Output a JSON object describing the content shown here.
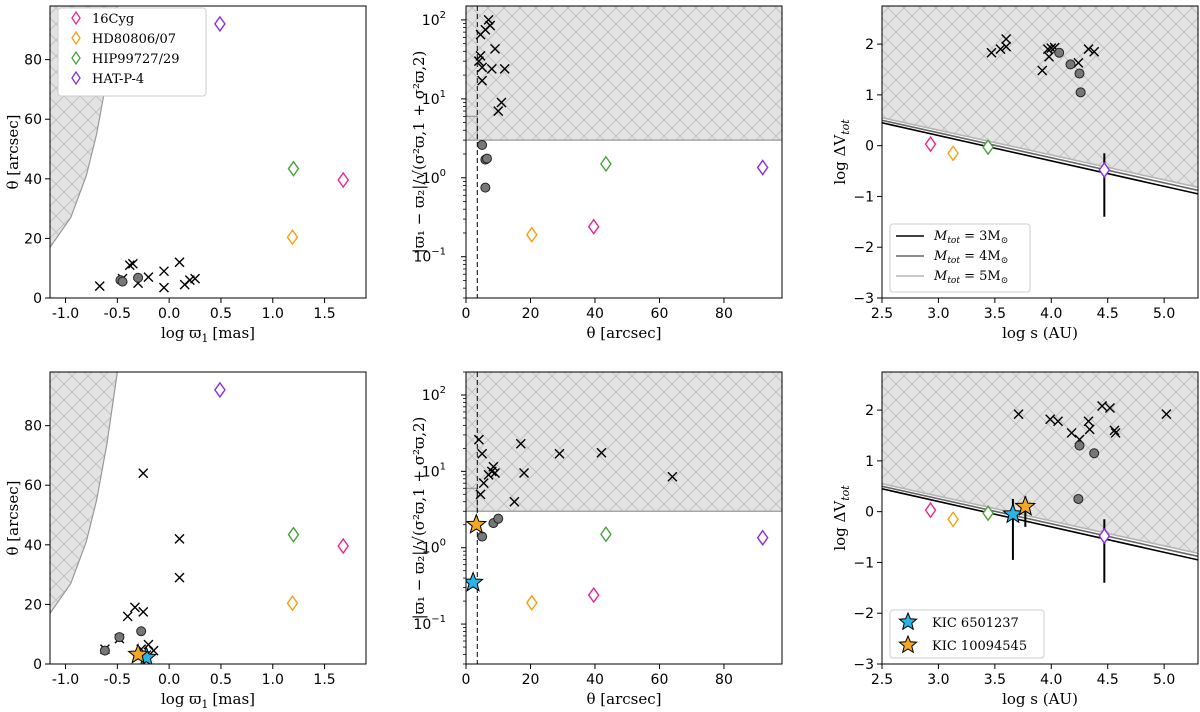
{
  "colors": {
    "16Cyg": "#e8268c",
    "HD80806/07": "#f5a10f",
    "HIP99727/29": "#4aa03a",
    "HAT-P-4": "#8a2be2",
    "star_blue": "#27b5e8",
    "star_orange": "#f5a623",
    "shade": "#e3e3e3",
    "hatch": "#bdbdbd"
  },
  "labels": {
    "x_plx": "log ϖ",
    "x_plx_sub": "1",
    "x_plx_unit": "[mas]",
    "y_theta": "θ [arcsec]",
    "x_theta": "θ [arcsec]",
    "y_plxsig": "|ϖ₁ − ϖ₂|/√(σ²ϖ,1 + σ²ϖ,2)",
    "x_s": "log s (AU)",
    "y_dv": "log ΔV",
    "y_dv_sub": "tot"
  },
  "legend_companions": [
    "16Cyg",
    "HD80806/07",
    "HIP99727/29",
    "HAT-P-4"
  ],
  "legend_mass": [
    "M",
    "tot",
    " = 3M",
    "⊙",
    " = 4M",
    " = 5M"
  ],
  "legend_mass_values": [
    3,
    4,
    5
  ],
  "legend_stars": [
    "KIC 6501237",
    "KIC 10094545"
  ],
  "chart_data": [
    {
      "id": "p1",
      "type": "scatter",
      "xlim": [
        -1.15,
        1.9
      ],
      "ylim": [
        0,
        98
      ],
      "xticks": [
        "-1.0",
        "-0.5",
        "0.0",
        "0.5",
        "1.0",
        "1.5"
      ],
      "xtick_values": [
        -1.0,
        -0.5,
        0.0,
        0.5,
        1.0,
        1.5
      ],
      "yticks": [
        "0",
        "20",
        "40",
        "60",
        "80"
      ],
      "ytick_values": [
        0,
        20,
        40,
        60,
        80
      ],
      "shade_curve": {
        "x": [
          -1.15,
          -0.95,
          -0.8,
          -0.7,
          -0.6,
          -0.55,
          -0.5
        ],
        "y": [
          17,
          27,
          41,
          55,
          74,
          86,
          98
        ]
      },
      "crosses": [
        [
          -0.67,
          4
        ],
        [
          -0.38,
          11
        ],
        [
          -0.35,
          11.5
        ],
        [
          -0.3,
          5
        ],
        [
          -0.2,
          7
        ],
        [
          -0.05,
          9
        ],
        [
          -0.05,
          3.5
        ],
        [
          0.1,
          12
        ],
        [
          0.2,
          6
        ],
        [
          0.15,
          4.5
        ],
        [
          0.25,
          6.5
        ],
        [
          -0.45,
          6.5
        ]
      ],
      "circles": [
        [
          -0.47,
          6
        ],
        [
          -0.45,
          5.5
        ],
        [
          -0.3,
          6.8
        ]
      ],
      "diamonds": [
        [
          1.68,
          39.6,
          "16Cyg"
        ],
        [
          1.19,
          20.4,
          "HD80806/07"
        ],
        [
          1.2,
          43.4,
          "HIP99727/29"
        ],
        [
          0.49,
          92,
          "HAT-P-4"
        ]
      ]
    },
    {
      "id": "p2",
      "type": "scatter",
      "log_y": true,
      "xlim": [
        0,
        98
      ],
      "ylim": [
        0.03,
        150
      ],
      "xticks": [
        "0",
        "20",
        "40",
        "60",
        "80"
      ],
      "xtick_values": [
        0,
        20,
        40,
        60,
        80
      ],
      "ytick_labels": [
        "10",
        "10",
        "10"
      ],
      "ytick_exps": [
        "−1",
        "0",
        "1"
      ],
      "ytick_extra": "10",
      "ytick_extra_exp": "2",
      "ytick_values": [
        0.1,
        1,
        10,
        100
      ],
      "shade_y": 3,
      "shade_step": [
        [
          0,
          6
        ],
        [
          3.5,
          6
        ]
      ],
      "vline_x": 3.5,
      "crosses": [
        [
          4,
          30
        ],
        [
          4.5,
          65
        ],
        [
          5,
          17
        ],
        [
          5,
          25
        ],
        [
          6,
          75
        ],
        [
          7,
          100
        ],
        [
          7.5,
          85
        ],
        [
          8,
          24
        ],
        [
          9,
          43
        ],
        [
          10,
          7
        ],
        [
          11,
          9
        ],
        [
          12,
          24
        ],
        [
          4.5,
          35
        ]
      ],
      "circles": [
        [
          5,
          2.6
        ],
        [
          6,
          1.7
        ],
        [
          6.5,
          1.75
        ],
        [
          6,
          0.75
        ]
      ],
      "diamonds": [
        [
          39.6,
          0.24,
          "16Cyg"
        ],
        [
          20.4,
          0.19,
          "HD80806/07"
        ],
        [
          43.4,
          1.5,
          "HIP99727/29"
        ],
        [
          92,
          1.35,
          "HAT-P-4"
        ]
      ]
    },
    {
      "id": "p3",
      "type": "scatter",
      "xlim": [
        2.5,
        5.3
      ],
      "ylim": [
        -3,
        2.75
      ],
      "xticks": [
        "2.5",
        "3.0",
        "3.5",
        "4.0",
        "4.5",
        "5.0"
      ],
      "xtick_values": [
        2.5,
        3.0,
        3.5,
        4.0,
        4.5,
        5.0
      ],
      "yticks": [
        "−3",
        "−2",
        "−1",
        "0",
        "1",
        "2"
      ],
      "ytick_values": [
        -3,
        -2,
        -1,
        0,
        1,
        2
      ],
      "lines": [
        {
          "m": 3,
          "y0": 0.45,
          "y1": -0.95
        },
        {
          "m": 4,
          "y0": 0.5,
          "y1": -0.88
        },
        {
          "m": 5,
          "y0": 0.55,
          "y1": -0.82
        }
      ],
      "crosses": [
        [
          3.47,
          1.83
        ],
        [
          3.55,
          1.9
        ],
        [
          3.6,
          2.1
        ],
        [
          3.6,
          1.95
        ],
        [
          3.92,
          1.48
        ],
        [
          3.98,
          1.75
        ],
        [
          4.0,
          1.92
        ],
        [
          4.03,
          1.93
        ],
        [
          4.24,
          1.63
        ],
        [
          4.33,
          1.9
        ],
        [
          4.38,
          1.85
        ],
        [
          3.97,
          1.9
        ]
      ],
      "circles": [
        [
          4.07,
          1.83
        ],
        [
          4.17,
          1.6
        ],
        [
          4.25,
          1.42
        ],
        [
          4.26,
          1.05
        ]
      ],
      "diamonds": [
        [
          2.93,
          0.03,
          "16Cyg"
        ],
        [
          3.13,
          -0.15,
          "HD80806/07"
        ],
        [
          3.44,
          -0.03,
          "HIP99727/29"
        ],
        [
          4.47,
          -0.48,
          "HAT-P-4"
        ]
      ],
      "errorbars": [
        [
          4.47,
          -1.4,
          -0.15
        ]
      ]
    },
    {
      "id": "p4",
      "type": "scatter",
      "xlim": [
        -1.15,
        1.9
      ],
      "ylim": [
        0,
        98
      ],
      "xticks": [
        "-1.0",
        "-0.5",
        "0.0",
        "0.5",
        "1.0",
        "1.5"
      ],
      "xtick_values": [
        -1.0,
        -0.5,
        0.0,
        0.5,
        1.0,
        1.5
      ],
      "yticks": [
        "0",
        "20",
        "40",
        "60",
        "80"
      ],
      "ytick_values": [
        0,
        20,
        40,
        60,
        80
      ],
      "shade_curve": {
        "x": [
          -1.15,
          -0.95,
          -0.8,
          -0.7,
          -0.6,
          -0.55,
          -0.5
        ],
        "y": [
          17,
          27,
          41,
          55,
          74,
          86,
          98
        ]
      },
      "crosses": [
        [
          -0.62,
          5
        ],
        [
          -0.48,
          8.5
        ],
        [
          -0.4,
          16
        ],
        [
          -0.33,
          19
        ],
        [
          -0.25,
          64
        ],
        [
          -0.25,
          17.5
        ],
        [
          -0.2,
          6.5
        ],
        [
          -0.22,
          3
        ],
        [
          -0.15,
          4.5
        ],
        [
          0.1,
          42
        ],
        [
          0.1,
          29
        ],
        [
          -0.27,
          5
        ]
      ],
      "circles": [
        [
          -0.62,
          4.5
        ],
        [
          -0.48,
          9
        ],
        [
          -0.27,
          11
        ]
      ],
      "diamonds": [
        [
          1.68,
          39.6,
          "16Cyg"
        ],
        [
          1.19,
          20.4,
          "HD80806/07"
        ],
        [
          1.2,
          43.4,
          "HIP99727/29"
        ],
        [
          0.49,
          92,
          "HAT-P-4"
        ]
      ],
      "stars": [
        [
          -0.22,
          2.2,
          "star_blue"
        ],
        [
          -0.3,
          3.2,
          "star_orange"
        ]
      ]
    },
    {
      "id": "p5",
      "type": "scatter",
      "log_y": true,
      "xlim": [
        0,
        98
      ],
      "ylim": [
        0.03,
        200
      ],
      "xticks": [
        "0",
        "20",
        "40",
        "60",
        "80"
      ],
      "xtick_values": [
        0,
        20,
        40,
        60,
        80
      ],
      "ytick_labels": [
        "10",
        "10",
        "10"
      ],
      "ytick_exps": [
        "−1",
        "0",
        "1"
      ],
      "ytick_extra": "10",
      "ytick_extra_exp": "2",
      "ytick_values": [
        0.1,
        1,
        10,
        100
      ],
      "shade_y": 3,
      "shade_step": [
        [
          0,
          6
        ],
        [
          3.5,
          6
        ]
      ],
      "vline_x": 3.5,
      "crosses": [
        [
          4,
          26
        ],
        [
          4.5,
          5
        ],
        [
          5,
          17
        ],
        [
          5.5,
          7
        ],
        [
          7,
          9
        ],
        [
          8,
          10
        ],
        [
          8.5,
          11.5
        ],
        [
          9,
          9.5
        ],
        [
          15,
          4
        ],
        [
          17,
          23
        ],
        [
          18,
          9.5
        ],
        [
          29,
          17
        ],
        [
          42,
          17.5
        ],
        [
          64,
          8.5
        ]
      ],
      "circles": [
        [
          5,
          1.4
        ],
        [
          8.5,
          2.1
        ],
        [
          10,
          2.4
        ]
      ],
      "diamonds": [
        [
          39.6,
          0.24,
          "16Cyg"
        ],
        [
          20.4,
          0.19,
          "HD80806/07"
        ],
        [
          43.4,
          1.5,
          "HIP99727/29"
        ],
        [
          92,
          1.35,
          "HAT-P-4"
        ]
      ],
      "stars": [
        [
          2.2,
          0.35,
          "star_blue"
        ],
        [
          3.2,
          2.0,
          "star_orange"
        ]
      ]
    },
    {
      "id": "p6",
      "type": "scatter",
      "xlim": [
        2.5,
        5.3
      ],
      "ylim": [
        -3,
        2.75
      ],
      "xticks": [
        "2.5",
        "3.0",
        "3.5",
        "4.0",
        "4.5",
        "5.0"
      ],
      "xtick_values": [
        2.5,
        3.0,
        3.5,
        4.0,
        4.5,
        5.0
      ],
      "yticks": [
        "−3",
        "−2",
        "−1",
        "0",
        "1",
        "2"
      ],
      "ytick_values": [
        -3,
        -2,
        -1,
        0,
        1,
        2
      ],
      "lines": [
        {
          "m": 3,
          "y0": 0.45,
          "y1": -0.95
        },
        {
          "m": 4,
          "y0": 0.5,
          "y1": -0.88
        },
        {
          "m": 5,
          "y0": 0.55,
          "y1": -0.82
        }
      ],
      "crosses": [
        [
          3.71,
          1.92
        ],
        [
          3.99,
          1.82
        ],
        [
          4.06,
          1.78
        ],
        [
          4.18,
          1.55
        ],
        [
          4.25,
          1.42
        ],
        [
          4.33,
          1.78
        ],
        [
          4.34,
          1.62
        ],
        [
          4.45,
          2.08
        ],
        [
          4.52,
          2.04
        ],
        [
          4.56,
          1.6
        ],
        [
          4.57,
          1.55
        ],
        [
          5.02,
          1.92
        ]
      ],
      "circles": [
        [
          4.25,
          1.3
        ],
        [
          4.38,
          1.15
        ],
        [
          4.24,
          0.25
        ]
      ],
      "diamonds": [
        [
          2.93,
          0.03,
          "16Cyg"
        ],
        [
          3.13,
          -0.15,
          "HD80806/07"
        ],
        [
          3.44,
          -0.03,
          "HIP99727/29"
        ],
        [
          4.47,
          -0.48,
          "HAT-P-4"
        ]
      ],
      "errorbars": [
        [
          4.47,
          -1.4,
          -0.15
        ],
        [
          3.66,
          -0.95,
          0.25
        ],
        [
          3.77,
          -0.3,
          0.3
        ]
      ],
      "stars": [
        [
          3.66,
          -0.05,
          "star_blue"
        ],
        [
          3.77,
          0.1,
          "star_orange"
        ]
      ]
    }
  ]
}
